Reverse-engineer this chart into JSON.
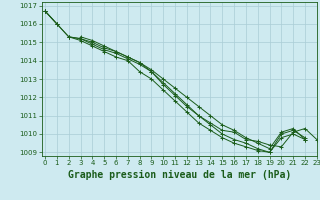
{
  "title": "Graphe pression niveau de la mer (hPa)",
  "bg_color": "#ceeaf0",
  "grid_color": "#aacdd6",
  "line_color": "#1a5c1a",
  "marker_color": "#1a5c1a",
  "xlim": [
    -0.3,
    23
  ],
  "ylim": [
    1008.8,
    1017.2
  ],
  "xtick_labels": [
    "0",
    "1",
    "2",
    "3",
    "4",
    "5",
    "6",
    "7",
    "8",
    "9",
    "10",
    "11",
    "12",
    "13",
    "14",
    "15",
    "16",
    "17",
    "18",
    "19",
    "20",
    "21",
    "22",
    "23"
  ],
  "yticks": [
    1009,
    1010,
    1011,
    1012,
    1013,
    1014,
    1015,
    1016,
    1017
  ],
  "series": [
    [
      1016.7,
      1016.0,
      null,
      1015.3,
      1015.1,
      1014.8,
      1014.5,
      1014.2,
      1013.9,
      1013.5,
      1013.0,
      1012.5,
      1012.0,
      1011.5,
      1011.0,
      1010.5,
      1010.2,
      1009.8,
      1009.5,
      1009.2,
      1010.1,
      1010.3,
      1009.7,
      null
    ],
    [
      1016.7,
      1016.0,
      1015.3,
      1015.2,
      1014.9,
      1014.6,
      1014.4,
      1014.1,
      1013.8,
      1013.4,
      1012.8,
      1012.2,
      1011.6,
      1011.0,
      1010.5,
      1010.0,
      1009.7,
      1009.5,
      1009.2,
      1009.0,
      1010.0,
      1010.2,
      1009.8,
      null
    ],
    [
      1016.7,
      1016.0,
      1015.3,
      1015.1,
      1014.8,
      1014.5,
      1014.2,
      1014.0,
      1013.4,
      1013.0,
      1012.4,
      1011.8,
      1011.2,
      1010.6,
      1010.2,
      1009.8,
      1009.5,
      1009.3,
      1009.1,
      1009.0,
      1009.8,
      1010.0,
      1009.7,
      null
    ],
    [
      1016.7,
      null,
      1015.3,
      1015.2,
      1015.0,
      1014.7,
      1014.5,
      1014.2,
      1013.9,
      1013.4,
      1012.7,
      1012.1,
      1011.5,
      1011.0,
      1010.6,
      1010.2,
      1010.1,
      1009.7,
      1009.6,
      1009.4,
      1009.3,
      1010.1,
      1010.3,
      1009.7
    ]
  ],
  "font_color": "#1a5c1a",
  "tick_fontsize": 5.0,
  "label_fontsize": 7.0
}
